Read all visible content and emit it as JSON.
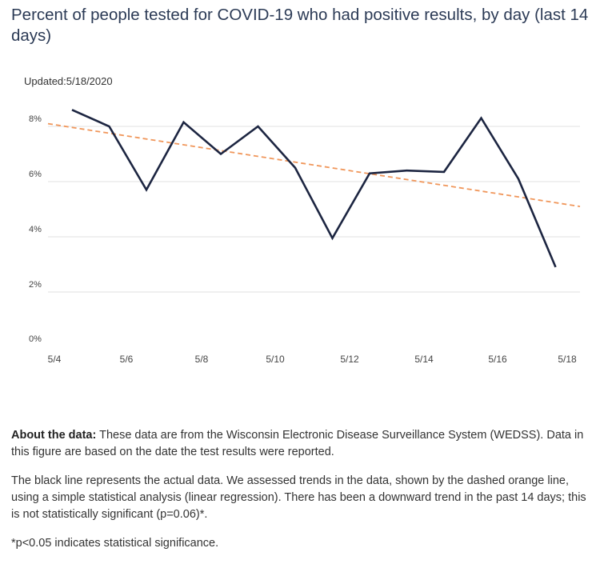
{
  "header": {
    "title": "Percent of people tested for COVID-19 who had positive results, by day (last 14 days)",
    "updated": "Updated:5/18/2020"
  },
  "chart_data": {
    "type": "line",
    "title": "Percent of people tested for COVID-19 who had positive results, by day (last 14 days)",
    "xlabel": "",
    "ylabel": "",
    "x": [
      "5/5",
      "5/6",
      "5/7",
      "5/8",
      "5/9",
      "5/10",
      "5/11",
      "5/12",
      "5/13",
      "5/14",
      "5/15",
      "5/16",
      "5/17",
      "5/18"
    ],
    "x_tick_labels": [
      "5/4",
      "5/6",
      "5/8",
      "5/10",
      "5/12",
      "5/14",
      "5/16",
      "5/18"
    ],
    "y_tick_labels": [
      "0%",
      "2%",
      "4%",
      "6%",
      "8%"
    ],
    "ylim": [
      0,
      9
    ],
    "grid": true,
    "series": [
      {
        "values": [
          8.6,
          8.0,
          5.7,
          8.15,
          7.0,
          8.0,
          6.5,
          3.95,
          6.3,
          6.4,
          6.35,
          8.3,
          6.1,
          2.9
        ],
        "color": "#1c2541",
        "style": "solid"
      },
      {
        "trend_start": 8.1,
        "trend_end": 5.1,
        "color": "#f0965a",
        "style": "dashed"
      }
    ]
  },
  "notes": {
    "about_label": "About the data:",
    "about_text": " These data are from the Wisconsin Electronic Disease Surveillance System (WEDSS). Data in this figure are based on the date the test results were reported.",
    "trend_text": "The black line represents the actual data. We assessed trends in the data, shown by the dashed orange line, using a simple statistical analysis (linear regression). There has been a downward trend in the past 14 days; this is not statistically significant (p=0.06)*.",
    "footnote": "*p<0.05 indicates statistical significance."
  }
}
